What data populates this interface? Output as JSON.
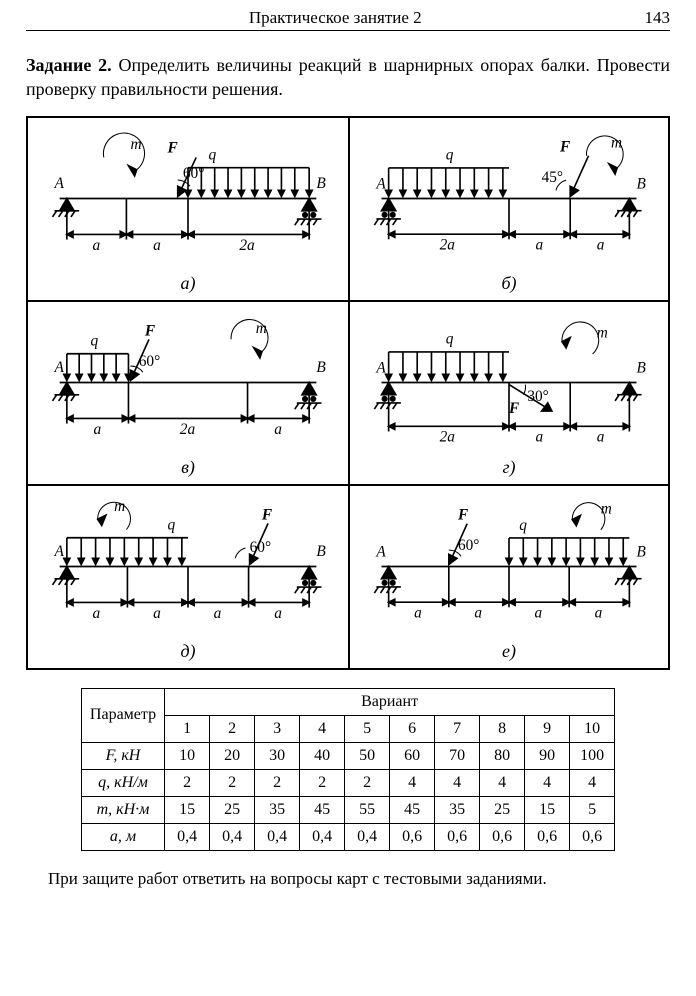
{
  "header": {
    "title": "Практическое занятие 2",
    "page": "143"
  },
  "task": {
    "label": "Задание 2.",
    "text": " Определить величины реакций в шарнирных опорах балки. Провести проверку правильности решения."
  },
  "diagrams": {
    "labels": [
      "а)",
      "б)",
      "в)",
      "г)",
      "д)",
      "е)"
    ],
    "letters": {
      "A": "A",
      "B": "B",
      "F": "F",
      "q": "q",
      "m": "m",
      "a": "a",
      "two_a": "2a"
    },
    "angles": {
      "60": "60°",
      "45": "45°",
      "30": "30°"
    }
  },
  "table": {
    "header_param": "Параметр",
    "header_variant": "Вариант",
    "variants": [
      "1",
      "2",
      "3",
      "4",
      "5",
      "6",
      "7",
      "8",
      "9",
      "10"
    ],
    "rows": [
      {
        "param": "F, кН",
        "cells": [
          "10",
          "20",
          "30",
          "40",
          "50",
          "60",
          "70",
          "80",
          "90",
          "100"
        ]
      },
      {
        "param": "q, кН/м",
        "cells": [
          "2",
          "2",
          "2",
          "2",
          "2",
          "4",
          "4",
          "4",
          "4",
          "4"
        ]
      },
      {
        "param": "m, кН·м",
        "cells": [
          "15",
          "25",
          "35",
          "45",
          "55",
          "45",
          "35",
          "25",
          "15",
          "5"
        ]
      },
      {
        "param": "a, м",
        "cells": [
          "0,4",
          "0,4",
          "0,4",
          "0,4",
          "0,4",
          "0,6",
          "0,6",
          "0,6",
          "0,6",
          "0,6"
        ]
      }
    ]
  },
  "footer": "При защите работ ответить на вопросы карт с тестовыми заданиями.",
  "style": {
    "line_color": "#000000",
    "bg": "#ffffff",
    "beam_w": 2.0,
    "dim_w": 1.0,
    "font": "Times New Roman",
    "font_size": 15
  }
}
